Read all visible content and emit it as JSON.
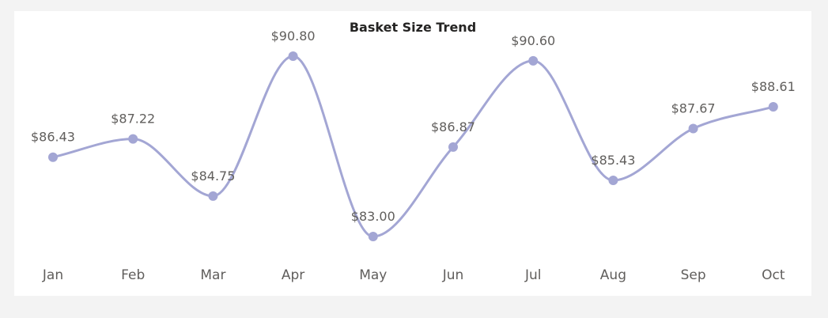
{
  "chart_data": {
    "type": "line",
    "title": "Basket Size Trend",
    "categories": [
      "Jan",
      "Feb",
      "Mar",
      "Apr",
      "May",
      "Jun",
      "Jul",
      "Aug",
      "Sep",
      "Oct"
    ],
    "values": [
      86.43,
      87.22,
      84.75,
      90.8,
      83.0,
      86.87,
      90.6,
      85.43,
      87.67,
      88.61
    ],
    "data_labels": [
      "$86.43",
      "$87.22",
      "$84.75",
      "$90.80",
      "$83.00",
      "$86.87",
      "$90.60",
      "$85.43",
      "$87.67",
      "$88.61"
    ],
    "xlabel": "",
    "ylabel": "",
    "smooth": true,
    "grid": false,
    "y_axis_visible": false,
    "line_color": "#a3a6d4",
    "marker_color": "#a3a6d4"
  }
}
